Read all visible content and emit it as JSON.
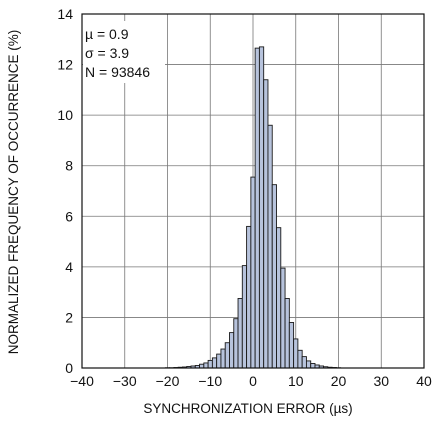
{
  "chart_data": {
    "type": "bar",
    "title": "",
    "xlabel": "SYNCHRONIZATION ERROR (µs)",
    "ylabel": "NORMALIZED FREQUENCY OF OCCURRENCE (%)",
    "xlim": [
      -40,
      40
    ],
    "ylim": [
      0,
      14
    ],
    "x_ticks": [
      -40,
      -30,
      -20,
      -10,
      0,
      10,
      20,
      30,
      40
    ],
    "x_tick_labels": [
      "−40",
      "−30",
      "−20",
      "−10",
      "0",
      "10",
      "20",
      "30",
      "40"
    ],
    "y_ticks": [
      0,
      2,
      4,
      6,
      8,
      10,
      12,
      14
    ],
    "y_tick_labels": [
      "0",
      "2",
      "4",
      "6",
      "8",
      "10",
      "12",
      "14"
    ],
    "grid": true,
    "bin_width": 1,
    "bar_fill": "#b7c3dc",
    "bar_stroke": "#1a1a1a",
    "bins_x": [
      -20,
      -19,
      -18,
      -17,
      -16,
      -15,
      -14,
      -13,
      -12,
      -11,
      -10,
      -9,
      -8,
      -7,
      -6,
      -5,
      -4,
      -3,
      -2,
      -1,
      0,
      1,
      2,
      3,
      4,
      5,
      6,
      7,
      8,
      9,
      10,
      11,
      12,
      13,
      14,
      15,
      16,
      17,
      18,
      19,
      20
    ],
    "values": [
      0.01,
      0.01,
      0.02,
      0.03,
      0.04,
      0.06,
      0.08,
      0.1,
      0.15,
      0.2,
      0.3,
      0.4,
      0.55,
      0.75,
      1.0,
      1.4,
      1.95,
      2.75,
      4.05,
      5.6,
      7.55,
      12.65,
      12.7,
      11.4,
      9.6,
      7.25,
      5.55,
      3.95,
      2.75,
      1.8,
      1.15,
      0.7,
      0.45,
      0.28,
      0.18,
      0.12,
      0.08,
      0.05,
      0.03,
      0.02,
      0.01
    ],
    "annotations": [
      "µ = 0.9",
      "σ = 3.9",
      "N = 93846"
    ]
  },
  "stats": {
    "mu": "µ = 0.9",
    "sigma": "σ = 3.9",
    "n": "N = 93846"
  }
}
